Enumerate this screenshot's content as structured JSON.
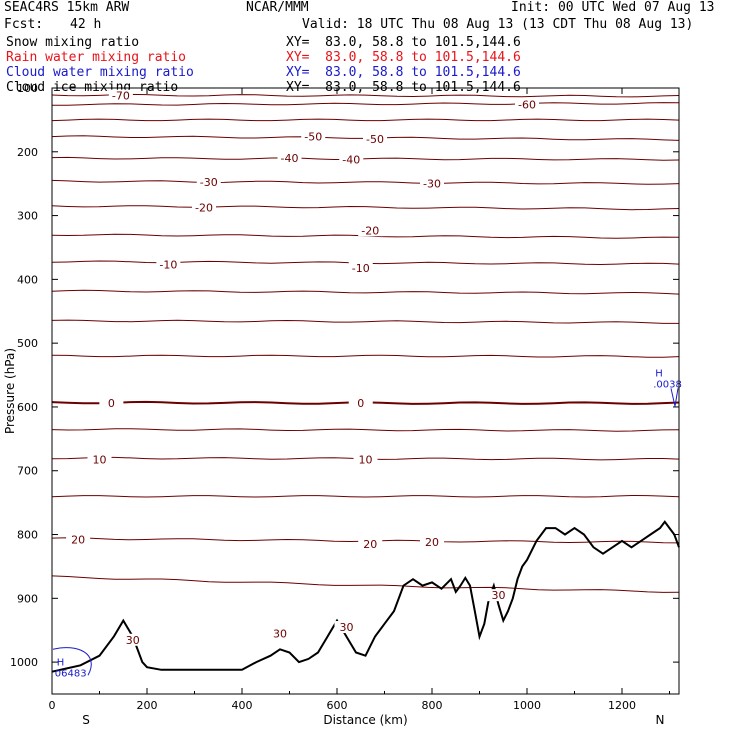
{
  "header": {
    "model": "SEAC4RS 15km ARW",
    "org": "NCAR/MMM",
    "init": "Init: 00 UTC Wed 07 Aug 13",
    "fcst_label": "Fcst:",
    "fcst_value": "42 h",
    "valid": "Valid: 18 UTC Thu 08 Aug 13 (13 CDT Thu 08 Aug 13)"
  },
  "fields": [
    {
      "name": "Snow mixing ratio",
      "color": "#000000",
      "xy": "XY=  83.0, 58.8 to 101.5,144.6"
    },
    {
      "name": "Rain water mixing ratio",
      "color": "#e8141a",
      "xy": "XY=  83.0, 58.8 to 101.5,144.6"
    },
    {
      "name": "Cloud water mixing ratio",
      "color": "#1a1acc",
      "xy": "XY=  83.0, 58.8 to 101.5,144.6"
    },
    {
      "name": "Cloud ice mixing ratio",
      "color": "#000000",
      "xy": "XY=  83.0, 58.8 to 101.5,144.6"
    }
  ],
  "chart_data": {
    "type": "line",
    "xlabel": "Distance (km)",
    "ylabel": "Pressure (hPa)",
    "xlim": [
      0,
      1320
    ],
    "ylim": [
      1050,
      100
    ],
    "x_ticks": [
      0,
      200,
      400,
      600,
      800,
      1000,
      1200
    ],
    "y_ticks": [
      200,
      300,
      400,
      500,
      600,
      700,
      800,
      900,
      1000
    ],
    "y_tick_100": "100",
    "end_labels": {
      "left": "S",
      "right": "N"
    },
    "isotherm_color": "#6b0000",
    "isotherm_levels": [
      {
        "p": [
          111,
          112,
          113
        ],
        "label": "-70",
        "lx": 145
      },
      {
        "p": [
          126,
          125,
          124
        ],
        "label": "-60",
        "lx": 1000
      },
      {
        "p": [
          150,
          150,
          150
        ]
      },
      {
        "p": [
          176,
          178,
          181
        ],
        "label": "-50",
        "lx": 550
      },
      {
        "p": [
          210,
          211,
          212
        ],
        "label": "-40",
        "lx": 500
      },
      {
        "p": [
          246,
          248,
          250
        ],
        "label": "-30",
        "lx": 320
      },
      {
        "p": [
          285,
          287,
          290
        ],
        "label": "-20",
        "lx": 660
      },
      {
        "p": [
          330,
          332,
          335
        ]
      },
      {
        "p": [
          372,
          374,
          376
        ],
        "label": "-10",
        "lx": 640
      },
      {
        "p": [
          418,
          420,
          422
        ]
      },
      {
        "p": [
          465,
          466,
          468
        ]
      },
      {
        "p": [
          520,
          520,
          521
        ]
      },
      {
        "p": [
          593,
          594,
          594
        ],
        "label": "0",
        "lx": 130,
        "bold": true
      },
      {
        "p": [
          635,
          636,
          637
        ]
      },
      {
        "p": [
          680,
          681,
          682
        ],
        "label": "10",
        "lx": 660
      },
      {
        "p": [
          740,
          740,
          740
        ]
      },
      {
        "p": [
          806,
          810,
          812
        ],
        "label": "20",
        "lx": 800
      },
      {
        "p": [
          866,
          880,
          890
        ],
        "label": "30",
        "lx": 940
      }
    ],
    "inline_labels": [
      {
        "text": "-60",
        "x": 1000,
        "p": 126
      },
      {
        "text": "-70",
        "x": 145,
        "p": 112
      },
      {
        "text": "-50",
        "x": 550,
        "p": 176
      },
      {
        "text": "-50",
        "x": 680,
        "p": 180
      },
      {
        "text": "-40",
        "x": 500,
        "p": 210
      },
      {
        "text": "-40",
        "x": 630,
        "p": 212
      },
      {
        "text": "-30",
        "x": 330,
        "p": 247
      },
      {
        "text": "-30",
        "x": 800,
        "p": 250
      },
      {
        "text": "-20",
        "x": 320,
        "p": 287
      },
      {
        "text": "-20",
        "x": 670,
        "p": 323
      },
      {
        "text": "-10",
        "x": 245,
        "p": 377
      },
      {
        "text": "-10",
        "x": 650,
        "p": 382
      },
      {
        "text": "0",
        "x": 125,
        "p": 594
      },
      {
        "text": "0",
        "x": 650,
        "p": 594
      },
      {
        "text": "10",
        "x": 100,
        "p": 682
      },
      {
        "text": "10",
        "x": 660,
        "p": 682
      },
      {
        "text": "20",
        "x": 55,
        "p": 808
      },
      {
        "text": "20",
        "x": 670,
        "p": 815
      },
      {
        "text": "20",
        "x": 800,
        "p": 812
      },
      {
        "text": "30",
        "x": 170,
        "p": 965
      },
      {
        "text": "30",
        "x": 480,
        "p": 955
      },
      {
        "text": "30",
        "x": 620,
        "p": 945
      },
      {
        "text": "30",
        "x": 940,
        "p": 895
      }
    ],
    "terrain": {
      "color": "#000000",
      "x": [
        0,
        30,
        60,
        100,
        130,
        150,
        170,
        190,
        200,
        230,
        260,
        300,
        350,
        400,
        430,
        460,
        480,
        500,
        520,
        540,
        560,
        580,
        600,
        620,
        640,
        660,
        680,
        700,
        720,
        740,
        760,
        780,
        800,
        820,
        840,
        850,
        860,
        870,
        880,
        890,
        900,
        910,
        920,
        930,
        940,
        950,
        960,
        970,
        980,
        990,
        1000,
        1020,
        1040,
        1060,
        1080,
        1100,
        1120,
        1140,
        1160,
        1180,
        1200,
        1220,
        1240,
        1260,
        1280,
        1290,
        1300,
        1310,
        1320
      ],
      "p": [
        1015,
        1010,
        1005,
        990,
        960,
        935,
        960,
        1000,
        1008,
        1012,
        1012,
        1012,
        1012,
        1012,
        1000,
        990,
        980,
        985,
        1000,
        995,
        985,
        960,
        935,
        960,
        985,
        990,
        960,
        940,
        920,
        880,
        870,
        880,
        875,
        885,
        870,
        890,
        880,
        868,
        880,
        920,
        960,
        940,
        900,
        880,
        910,
        935,
        920,
        900,
        870,
        850,
        840,
        810,
        790,
        790,
        800,
        790,
        800,
        820,
        830,
        820,
        810,
        820,
        810,
        800,
        790,
        780,
        790,
        800,
        820
      ]
    },
    "cloud_water_regions": [
      {
        "label": "H",
        "value": "06483",
        "x": 10,
        "p": 1005
      },
      {
        "label": "H",
        "value": ".0038",
        "x": 1270,
        "p": 552
      }
    ]
  }
}
